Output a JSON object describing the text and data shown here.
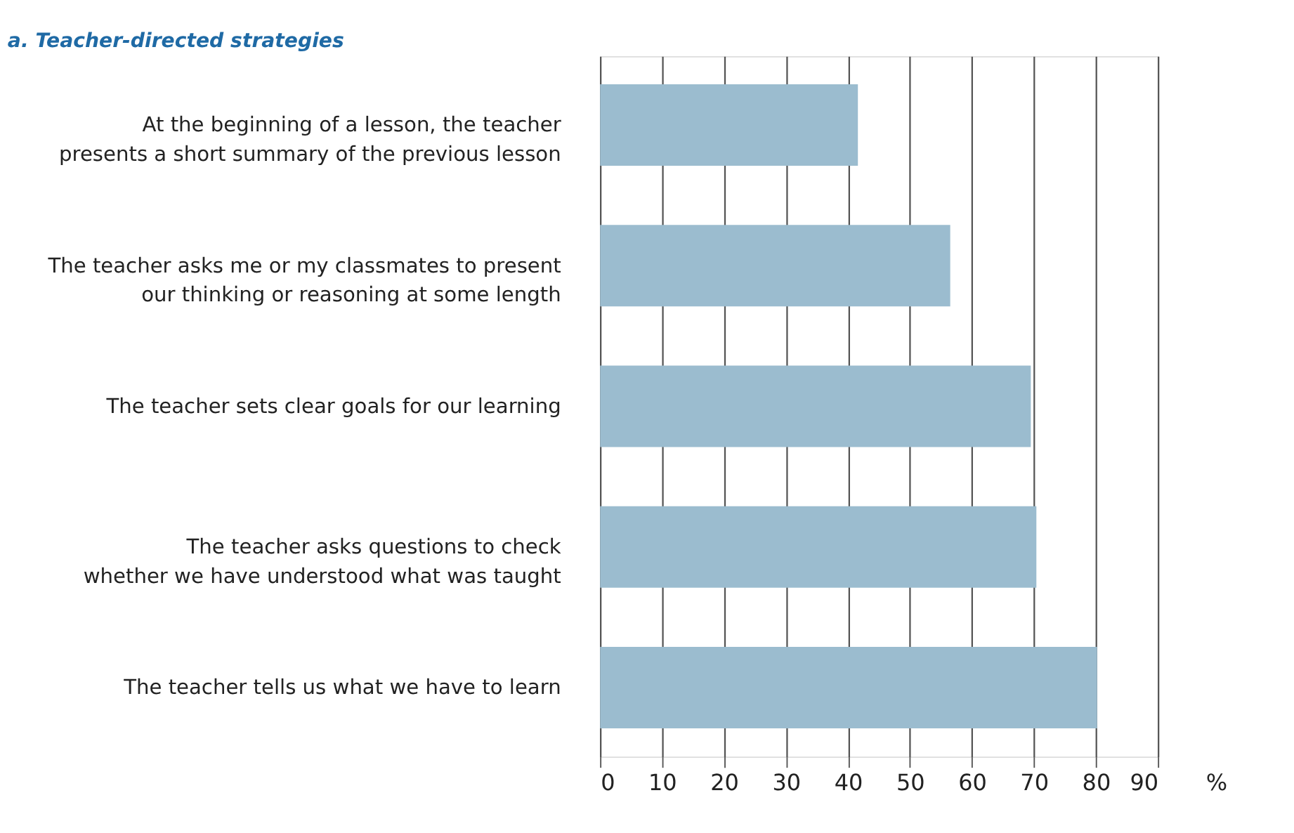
{
  "chart_data": {
    "type": "bar",
    "orientation": "horizontal",
    "title": "a. Teacher-directed strategies",
    "categories": [
      "At the beginning of a lesson, the teacher presents a short summary of the previous lesson",
      "The teacher asks me or my classmates to present our thinking or reasoning at some length",
      "The teacher sets clear goals for our learning",
      "The teacher asks questions to check whether we have understood what was taught",
      "The teacher tells us what we have to learn"
    ],
    "values": [
      41.6,
      56.5,
      69.5,
      70.4,
      80.2
    ],
    "color": "#9bbccf",
    "xlabel": "%",
    "xlim": [
      0,
      90
    ],
    "xticks": [
      0,
      10,
      20,
      30,
      40,
      50,
      60,
      70,
      80,
      90
    ],
    "grid": "x"
  }
}
